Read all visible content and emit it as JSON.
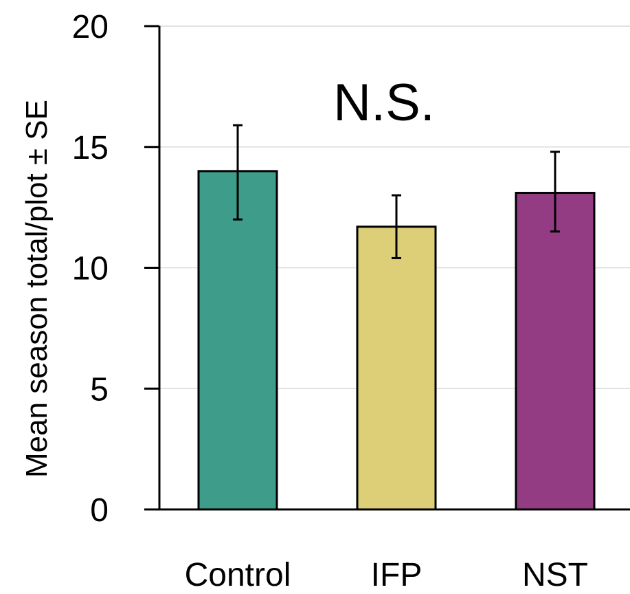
{
  "chart_data": {
    "type": "bar",
    "categories": [
      "Control",
      "IFP",
      "NST"
    ],
    "values": [
      14.0,
      11.7,
      13.1
    ],
    "error_low": [
      12.0,
      10.4,
      11.5
    ],
    "error_high": [
      15.9,
      13.0,
      14.8
    ],
    "colors": [
      "#3d9d8a",
      "#dccf78",
      "#943c83"
    ],
    "title": "",
    "xlabel": "",
    "ylabel": "Mean season total/plot ± SE",
    "ylim": [
      0,
      20
    ],
    "yticks": [
      "0",
      "5",
      "10",
      "15",
      "20"
    ],
    "annotation": "N.S.",
    "grid": true
  }
}
